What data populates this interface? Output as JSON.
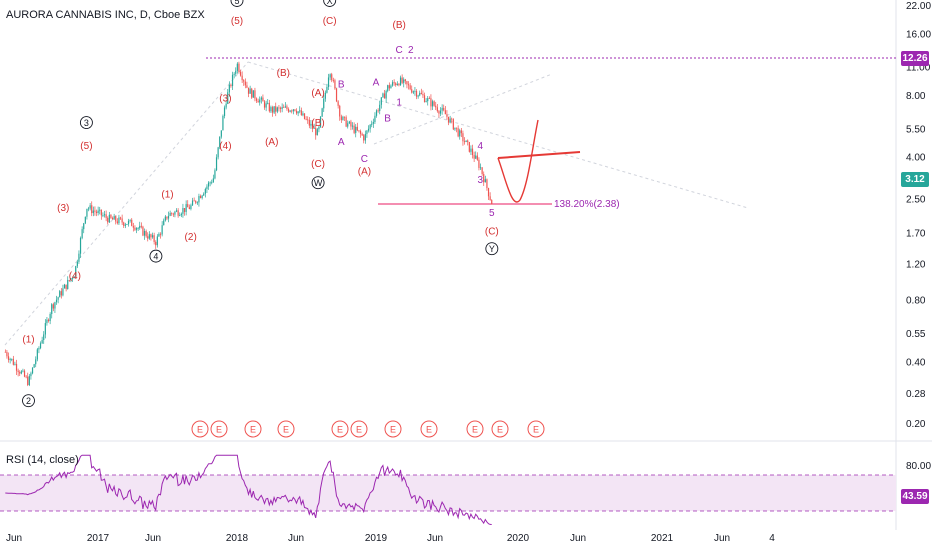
{
  "header": {
    "title": "AURORA CANNABIS INC, D, Cboe BZX"
  },
  "rsi": {
    "title": "RSI (14, close)",
    "ticks": [
      "80.00"
    ],
    "current": "43.59",
    "band": [
      30,
      70
    ]
  },
  "colors": {
    "wave_label": "#d32f2f",
    "minor_label": "#9c27b0",
    "price_line": "#9c27b0",
    "candle_up": "#26a69a",
    "candle_down": "#ef5350",
    "badge_green": "#26a69a",
    "badge_purple": "#9c27b0",
    "rsi_line": "#9c27b0",
    "rsi_fill": "#f3e5f5"
  },
  "chart_data": {
    "type": "candlestick",
    "scale": "log",
    "symbol": "AURORA CANNABIS INC",
    "price_axis_ticks": [
      "22.00",
      "16.00",
      "11.00",
      "8.00",
      "5.50",
      "4.00",
      "2.50",
      "1.70",
      "1.20",
      "0.80",
      "0.55",
      "0.40",
      "0.28",
      "0.20"
    ],
    "time_axis_ticks": [
      "Jun",
      "2017",
      "Jun",
      "2018",
      "Jun",
      "2019",
      "Jun",
      "2020",
      "Jun",
      "2021",
      "Jun",
      "4"
    ],
    "last_price": "3.12",
    "horizontal_level": "12.26",
    "fib_label": "138.20%(2.38)",
    "approx_closes": [
      [
        "2016-05",
        0.45
      ],
      [
        "2016-07",
        0.32
      ],
      [
        "2016-09",
        0.75
      ],
      [
        "2016-11",
        1.1
      ],
      [
        "2016-12",
        2.3
      ],
      [
        "2017-02",
        2.0
      ],
      [
        "2017-04",
        1.9
      ],
      [
        "2017-06",
        1.55
      ],
      [
        "2017-07",
        2.1
      ],
      [
        "2017-09",
        2.3
      ],
      [
        "2017-11",
        3.2
      ],
      [
        "2017-12",
        7.5
      ],
      [
        "2018-01",
        11.5
      ],
      [
        "2018-02",
        8.5
      ],
      [
        "2018-04",
        6.8
      ],
      [
        "2018-06",
        7.0
      ],
      [
        "2018-08",
        5.2
      ],
      [
        "2018-09",
        11.0
      ],
      [
        "2018-10",
        6.2
      ],
      [
        "2018-12",
        5.0
      ],
      [
        "2019-02",
        8.8
      ],
      [
        "2019-03",
        9.5
      ],
      [
        "2019-05",
        8.0
      ],
      [
        "2019-07",
        6.5
      ],
      [
        "2019-09",
        4.5
      ],
      [
        "2019-10",
        3.6
      ],
      [
        "2019-11",
        2.4
      ],
      [
        "2019-11",
        3.12
      ]
    ],
    "wave_labels": [
      {
        "text": "5",
        "date": "2018-01",
        "price": 22.5,
        "circled": true,
        "color": "black"
      },
      {
        "text": "(5)",
        "date": "2018-01",
        "price": 18.0,
        "color": "red"
      },
      {
        "text": "X",
        "date": "2018-09",
        "price": 22.5,
        "circled": true,
        "color": "black"
      },
      {
        "text": "(C)",
        "date": "2018-09",
        "price": 18.0,
        "color": "red"
      },
      {
        "text": "(B)",
        "date": "2019-03",
        "price": 17.2,
        "color": "red"
      },
      {
        "text": "C",
        "date": "2019-03",
        "price": 13.0,
        "color": "purple"
      },
      {
        "text": "2",
        "date": "2019-04",
        "price": 13.0,
        "color": "purple"
      },
      {
        "text": "(3)",
        "date": "2017-12",
        "price": 7.5,
        "color": "red"
      },
      {
        "text": "(4)",
        "date": "2017-12",
        "price": 4.4,
        "color": "red"
      },
      {
        "text": "(B)",
        "date": "2018-05",
        "price": 10.0,
        "color": "red"
      },
      {
        "text": "(A)",
        "date": "2018-04",
        "price": 4.6,
        "color": "red"
      },
      {
        "text": "(A)",
        "date": "2018-08",
        "price": 8.0,
        "color": "red"
      },
      {
        "text": "(B)",
        "date": "2018-08",
        "price": 5.7,
        "color": "red"
      },
      {
        "text": "(C)",
        "date": "2018-08",
        "price": 3.6,
        "color": "red"
      },
      {
        "text": "W",
        "date": "2018-08",
        "price": 2.9,
        "circled": true,
        "color": "black"
      },
      {
        "text": "B",
        "date": "2018-10",
        "price": 8.8,
        "color": "purple"
      },
      {
        "text": "A",
        "date": "2018-10",
        "price": 4.6,
        "color": "purple"
      },
      {
        "text": "A",
        "date": "2019-01",
        "price": 9.0,
        "color": "purple"
      },
      {
        "text": "B",
        "date": "2019-02",
        "price": 6.0,
        "color": "purple"
      },
      {
        "text": "1",
        "date": "2019-03",
        "price": 7.2,
        "color": "purple"
      },
      {
        "text": "C",
        "date": "2018-12",
        "price": 3.8,
        "color": "purple"
      },
      {
        "text": "(A)",
        "date": "2018-12",
        "price": 3.3,
        "color": "red"
      },
      {
        "text": "4",
        "date": "2019-10",
        "price": 4.4,
        "color": "purple"
      },
      {
        "text": "3",
        "date": "2019-10",
        "price": 3.0,
        "color": "purple"
      },
      {
        "text": "5",
        "date": "2019-11",
        "price": 2.08,
        "color": "purple"
      },
      {
        "text": "(C)",
        "date": "2019-11",
        "price": 1.68,
        "color": "red"
      },
      {
        "text": "Y",
        "date": "2019-11",
        "price": 1.38,
        "circled": true,
        "color": "black"
      },
      {
        "text": "3",
        "date": "2016-12",
        "price": 5.7,
        "circled": true,
        "color": "black"
      },
      {
        "text": "(5)",
        "date": "2016-12",
        "price": 4.4,
        "color": "red"
      },
      {
        "text": "(3)",
        "date": "2016-10",
        "price": 2.2,
        "color": "red"
      },
      {
        "text": "(4)",
        "date": "2016-11",
        "price": 1.02,
        "color": "red"
      },
      {
        "text": "(1)",
        "date": "2016-07",
        "price": 0.5,
        "color": "red"
      },
      {
        "text": "2",
        "date": "2016-07",
        "price": 0.25,
        "circled": true,
        "color": "black"
      },
      {
        "text": "(1)",
        "date": "2017-07",
        "price": 2.55,
        "color": "red"
      },
      {
        "text": "(2)",
        "date": "2017-09",
        "price": 1.58,
        "color": "red"
      },
      {
        "text": "4",
        "date": "2017-06",
        "price": 1.27,
        "circled": true,
        "color": "black"
      }
    ],
    "earnings_markers": [
      "E",
      "E",
      "E",
      "E",
      "E",
      "E",
      "E",
      "E",
      "E",
      "E",
      "E"
    ]
  }
}
